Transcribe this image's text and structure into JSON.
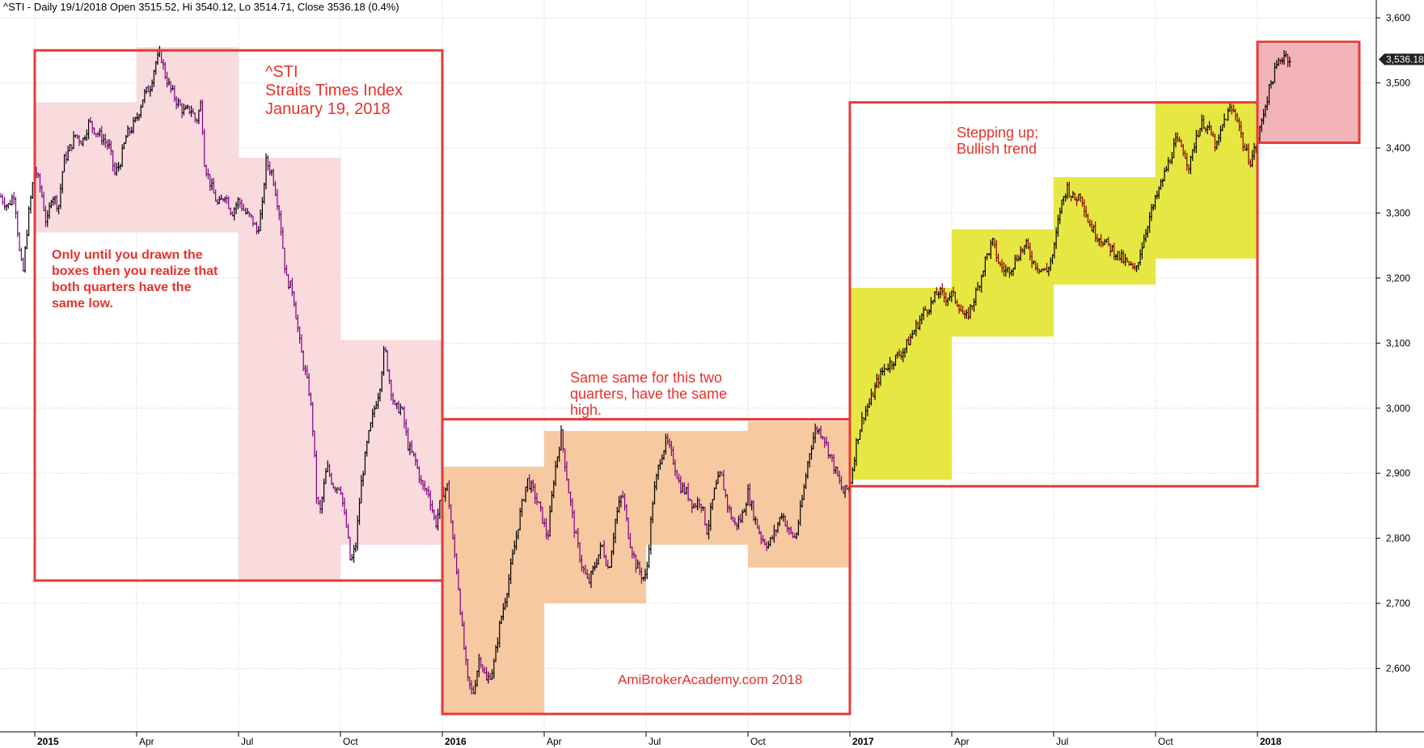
{
  "header": {
    "text": "^STI - Daily 19/1/2018 Open 3515.52, Hi 3540.12, Lo 3514.71, Close 3536.18 (0.4%)"
  },
  "annotations": {
    "title_lines": [
      "^STI",
      "Straits Times Index",
      "January 19, 2018"
    ],
    "note_2015": [
      "Only until you drawn the",
      "boxes then you realize that",
      "both quarters have the",
      "same low."
    ],
    "note_2016": [
      "Same same for this two",
      "quarters, have the same",
      "high."
    ],
    "note_2017": [
      "Stepping up;",
      "Bullish trend"
    ],
    "watermark": "AmiBrokerAcademy.com  2018"
  },
  "colors": {
    "price_up": "#000000",
    "price_down": "#800080",
    "price_down_2017": "#8b0000",
    "quarter_box_2015": "#f9dadd",
    "quarter_box_2016": "#f7c9a0",
    "quarter_box_2017": "#e6e63a",
    "quarter_box_2018": "#f2b3b8",
    "outline_red": "#e53b37",
    "grid": "#c9c9c9",
    "last_price_tag": "#222222"
  },
  "chart_data": {
    "type": "ohlc",
    "title": "^STI - Daily",
    "x_unit": "month",
    "x_axis_ticks": [
      {
        "label": "2015",
        "x": 0,
        "bold": true
      },
      {
        "label": "Apr",
        "x": 3
      },
      {
        "label": "Jul",
        "x": 6
      },
      {
        "label": "Oct",
        "x": 9
      },
      {
        "label": "2016",
        "x": 12,
        "bold": true
      },
      {
        "label": "Apr",
        "x": 15
      },
      {
        "label": "Jul",
        "x": 18
      },
      {
        "label": "Oct",
        "x": 21
      },
      {
        "label": "2017",
        "x": 24,
        "bold": true
      },
      {
        "label": "Apr",
        "x": 27
      },
      {
        "label": "Jul",
        "x": 30
      },
      {
        "label": "Oct",
        "x": 33
      },
      {
        "label": "2018",
        "x": 36,
        "bold": true
      }
    ],
    "y_axis_ticks": [
      {
        "label": "2,600",
        "value": 2600
      },
      {
        "label": "2,700",
        "value": 2700
      },
      {
        "label": "2,800",
        "value": 2800
      },
      {
        "label": "2,900",
        "value": 2900
      },
      {
        "label": "3,000",
        "value": 3000
      },
      {
        "label": "3,100",
        "value": 3100
      },
      {
        "label": "3,200",
        "value": 3200
      },
      {
        "label": "3,300",
        "value": 3300
      },
      {
        "label": "3,400",
        "value": 3400
      },
      {
        "label": "3,500",
        "value": 3500
      },
      {
        "label": "3,600",
        "value": 3600
      }
    ],
    "x_range": [
      -1,
      39
    ],
    "y_range": [
      2505,
      3610
    ],
    "grid": true,
    "last_price": {
      "value": 3536.18,
      "label": "3,536.18"
    },
    "price_path": [
      [
        -1.0,
        3325
      ],
      [
        -0.8,
        3310
      ],
      [
        -0.6,
        3330
      ],
      [
        -0.45,
        3240
      ],
      [
        -0.35,
        3205
      ],
      [
        -0.2,
        3290
      ],
      [
        0.0,
        3370
      ],
      [
        0.2,
        3330
      ],
      [
        0.35,
        3280
      ],
      [
        0.5,
        3330
      ],
      [
        0.7,
        3310
      ],
      [
        0.85,
        3380
      ],
      [
        1.0,
        3395
      ],
      [
        1.2,
        3420
      ],
      [
        1.4,
        3410
      ],
      [
        1.6,
        3440
      ],
      [
        1.8,
        3425
      ],
      [
        2.0,
        3415
      ],
      [
        2.2,
        3400
      ],
      [
        2.35,
        3360
      ],
      [
        2.5,
        3375
      ],
      [
        2.7,
        3420
      ],
      [
        2.85,
        3430
      ],
      [
        3.0,
        3445
      ],
      [
        3.2,
        3480
      ],
      [
        3.4,
        3495
      ],
      [
        3.55,
        3530
      ],
      [
        3.7,
        3545
      ],
      [
        3.85,
        3510
      ],
      [
        4.0,
        3490
      ],
      [
        4.2,
        3470
      ],
      [
        4.4,
        3455
      ],
      [
        4.6,
        3460
      ],
      [
        4.75,
        3440
      ],
      [
        4.9,
        3470
      ],
      [
        5.0,
        3375
      ],
      [
        5.2,
        3340
      ],
      [
        5.4,
        3310
      ],
      [
        5.6,
        3330
      ],
      [
        5.8,
        3300
      ],
      [
        6.0,
        3320
      ],
      [
        6.2,
        3300
      ],
      [
        6.4,
        3290
      ],
      [
        6.55,
        3270
      ],
      [
        6.7,
        3310
      ],
      [
        6.8,
        3380
      ],
      [
        7.0,
        3360
      ],
      [
        7.2,
        3300
      ],
      [
        7.4,
        3200
      ],
      [
        7.6,
        3180
      ],
      [
        7.8,
        3100
      ],
      [
        7.9,
        3070
      ],
      [
        8.1,
        3020
      ],
      [
        8.2,
        2960
      ],
      [
        8.3,
        2860
      ],
      [
        8.4,
        2840
      ],
      [
        8.6,
        2910
      ],
      [
        8.8,
        2880
      ],
      [
        9.0,
        2880
      ],
      [
        9.1,
        2840
      ],
      [
        9.2,
        2810
      ],
      [
        9.3,
        2760
      ],
      [
        9.45,
        2790
      ],
      [
        9.6,
        2880
      ],
      [
        9.8,
        2950
      ],
      [
        10.0,
        3000
      ],
      [
        10.15,
        3030
      ],
      [
        10.3,
        3095
      ],
      [
        10.45,
        3040
      ],
      [
        10.6,
        3000
      ],
      [
        10.8,
        3000
      ],
      [
        11.0,
        2940
      ],
      [
        11.2,
        2920
      ],
      [
        11.4,
        2880
      ],
      [
        11.6,
        2870
      ],
      [
        11.8,
        2820
      ],
      [
        12.0,
        2870
      ],
      [
        12.15,
        2880
      ],
      [
        12.3,
        2800
      ],
      [
        12.45,
        2740
      ],
      [
        12.6,
        2650
      ],
      [
        12.75,
        2580
      ],
      [
        12.9,
        2560
      ],
      [
        13.1,
        2620
      ],
      [
        13.3,
        2580
      ],
      [
        13.5,
        2600
      ],
      [
        13.7,
        2670
      ],
      [
        13.9,
        2720
      ],
      [
        14.1,
        2780
      ],
      [
        14.3,
        2840
      ],
      [
        14.5,
        2890
      ],
      [
        14.7,
        2870
      ],
      [
        14.9,
        2840
      ],
      [
        15.1,
        2800
      ],
      [
        15.3,
        2900
      ],
      [
        15.5,
        2960
      ],
      [
        15.7,
        2880
      ],
      [
        15.9,
        2810
      ],
      [
        16.1,
        2760
      ],
      [
        16.3,
        2730
      ],
      [
        16.5,
        2760
      ],
      [
        16.7,
        2790
      ],
      [
        16.9,
        2750
      ],
      [
        17.1,
        2830
      ],
      [
        17.3,
        2870
      ],
      [
        17.5,
        2800
      ],
      [
        17.7,
        2760
      ],
      [
        17.9,
        2740
      ],
      [
        18.0,
        2740
      ],
      [
        18.2,
        2860
      ],
      [
        18.4,
        2920
      ],
      [
        18.6,
        2950
      ],
      [
        18.8,
        2920
      ],
      [
        19.0,
        2880
      ],
      [
        19.2,
        2870
      ],
      [
        19.4,
        2850
      ],
      [
        19.6,
        2860
      ],
      [
        19.8,
        2810
      ],
      [
        20.0,
        2870
      ],
      [
        20.2,
        2900
      ],
      [
        20.4,
        2850
      ],
      [
        20.6,
        2820
      ],
      [
        20.8,
        2830
      ],
      [
        21.0,
        2870
      ],
      [
        21.2,
        2830
      ],
      [
        21.4,
        2800
      ],
      [
        21.6,
        2790
      ],
      [
        21.8,
        2810
      ],
      [
        22.0,
        2840
      ],
      [
        22.2,
        2810
      ],
      [
        22.4,
        2800
      ],
      [
        22.6,
        2860
      ],
      [
        22.8,
        2930
      ],
      [
        23.0,
        2970
      ],
      [
        23.2,
        2960
      ],
      [
        23.4,
        2930
      ],
      [
        23.6,
        2900
      ],
      [
        23.8,
        2870
      ],
      [
        24.0,
        2880
      ],
      [
        24.2,
        2950
      ],
      [
        24.4,
        2990
      ],
      [
        24.6,
        3010
      ],
      [
        24.8,
        3040
      ],
      [
        25.0,
        3060
      ],
      [
        25.2,
        3070
      ],
      [
        25.4,
        3080
      ],
      [
        25.6,
        3090
      ],
      [
        25.8,
        3110
      ],
      [
        26.0,
        3130
      ],
      [
        26.2,
        3150
      ],
      [
        26.4,
        3160
      ],
      [
        26.6,
        3180
      ],
      [
        26.8,
        3170
      ],
      [
        27.0,
        3175
      ],
      [
        27.2,
        3160
      ],
      [
        27.4,
        3135
      ],
      [
        27.6,
        3160
      ],
      [
        27.8,
        3190
      ],
      [
        28.0,
        3230
      ],
      [
        28.2,
        3255
      ],
      [
        28.4,
        3220
      ],
      [
        28.6,
        3210
      ],
      [
        28.8,
        3220
      ],
      [
        29.0,
        3240
      ],
      [
        29.2,
        3250
      ],
      [
        29.4,
        3225
      ],
      [
        29.6,
        3215
      ],
      [
        29.8,
        3210
      ],
      [
        30.0,
        3240
      ],
      [
        30.2,
        3310
      ],
      [
        30.4,
        3340
      ],
      [
        30.6,
        3320
      ],
      [
        30.8,
        3330
      ],
      [
        31.0,
        3290
      ],
      [
        31.2,
        3270
      ],
      [
        31.4,
        3260
      ],
      [
        31.6,
        3250
      ],
      [
        31.8,
        3240
      ],
      [
        32.0,
        3230
      ],
      [
        32.2,
        3220
      ],
      [
        32.4,
        3210
      ],
      [
        32.6,
        3250
      ],
      [
        32.8,
        3290
      ],
      [
        33.0,
        3320
      ],
      [
        33.2,
        3350
      ],
      [
        33.4,
        3380
      ],
      [
        33.6,
        3410
      ],
      [
        33.8,
        3400
      ],
      [
        34.0,
        3370
      ],
      [
        34.2,
        3420
      ],
      [
        34.4,
        3440
      ],
      [
        34.6,
        3425
      ],
      [
        34.8,
        3400
      ],
      [
        35.0,
        3440
      ],
      [
        35.2,
        3460
      ],
      [
        35.4,
        3450
      ],
      [
        35.6,
        3400
      ],
      [
        35.8,
        3380
      ],
      [
        36.0,
        3410
      ],
      [
        36.2,
        3460
      ],
      [
        36.4,
        3500
      ],
      [
        36.6,
        3530
      ],
      [
        36.8,
        3545
      ],
      [
        36.95,
        3536
      ]
    ],
    "quarter_boxes": [
      {
        "period": "2015 Q1",
        "x0": 0,
        "x1": 3,
        "low": 3270,
        "high": 3470,
        "color_key": "quarter_box_2015"
      },
      {
        "period": "2015 Q2",
        "x0": 3,
        "x1": 6,
        "low": 3270,
        "high": 3555,
        "color_key": "quarter_box_2015"
      },
      {
        "period": "2015 Q3",
        "x0": 6,
        "x1": 9,
        "low": 2735,
        "high": 3385,
        "color_key": "quarter_box_2015"
      },
      {
        "period": "2015 Q4",
        "x0": 9,
        "x1": 12,
        "low": 2790,
        "high": 3105,
        "color_key": "quarter_box_2015"
      },
      {
        "period": "2016 Q1",
        "x0": 12,
        "x1": 15,
        "low": 2530,
        "high": 2910,
        "color_key": "quarter_box_2016"
      },
      {
        "period": "2016 Q2",
        "x0": 15,
        "x1": 18,
        "low": 2700,
        "high": 2965,
        "color_key": "quarter_box_2016"
      },
      {
        "period": "2016 Q3",
        "x0": 18,
        "x1": 21,
        "low": 2790,
        "high": 2965,
        "color_key": "quarter_box_2016"
      },
      {
        "period": "2016 Q4",
        "x0": 21,
        "x1": 24,
        "low": 2755,
        "high": 2980,
        "color_key": "quarter_box_2016"
      },
      {
        "period": "2017 Q1",
        "x0": 24,
        "x1": 27,
        "low": 2890,
        "high": 3185,
        "color_key": "quarter_box_2017"
      },
      {
        "period": "2017 Q2",
        "x0": 27,
        "x1": 30,
        "low": 3110,
        "high": 3275,
        "color_key": "quarter_box_2017"
      },
      {
        "period": "2017 Q3",
        "x0": 30,
        "x1": 33,
        "low": 3190,
        "high": 3355,
        "color_key": "quarter_box_2017"
      },
      {
        "period": "2017 Q4",
        "x0": 33,
        "x1": 36,
        "low": 3230,
        "high": 3470,
        "color_key": "quarter_box_2017"
      },
      {
        "period": "2018 Q1",
        "x0": 36,
        "x1": 39,
        "low": 3410,
        "high": 3560,
        "color_key": "quarter_box_2018"
      }
    ],
    "outline_boxes": [
      {
        "x0": 0,
        "x1": 12,
        "low": 2735,
        "high": 3550
      },
      {
        "x0": 12,
        "x1": 24,
        "low": 2530,
        "high": 2983
      },
      {
        "x0": 24,
        "x1": 36,
        "low": 2880,
        "high": 3470
      },
      {
        "x0": 36,
        "x1": 39,
        "low": 3408,
        "high": 3563
      }
    ]
  }
}
